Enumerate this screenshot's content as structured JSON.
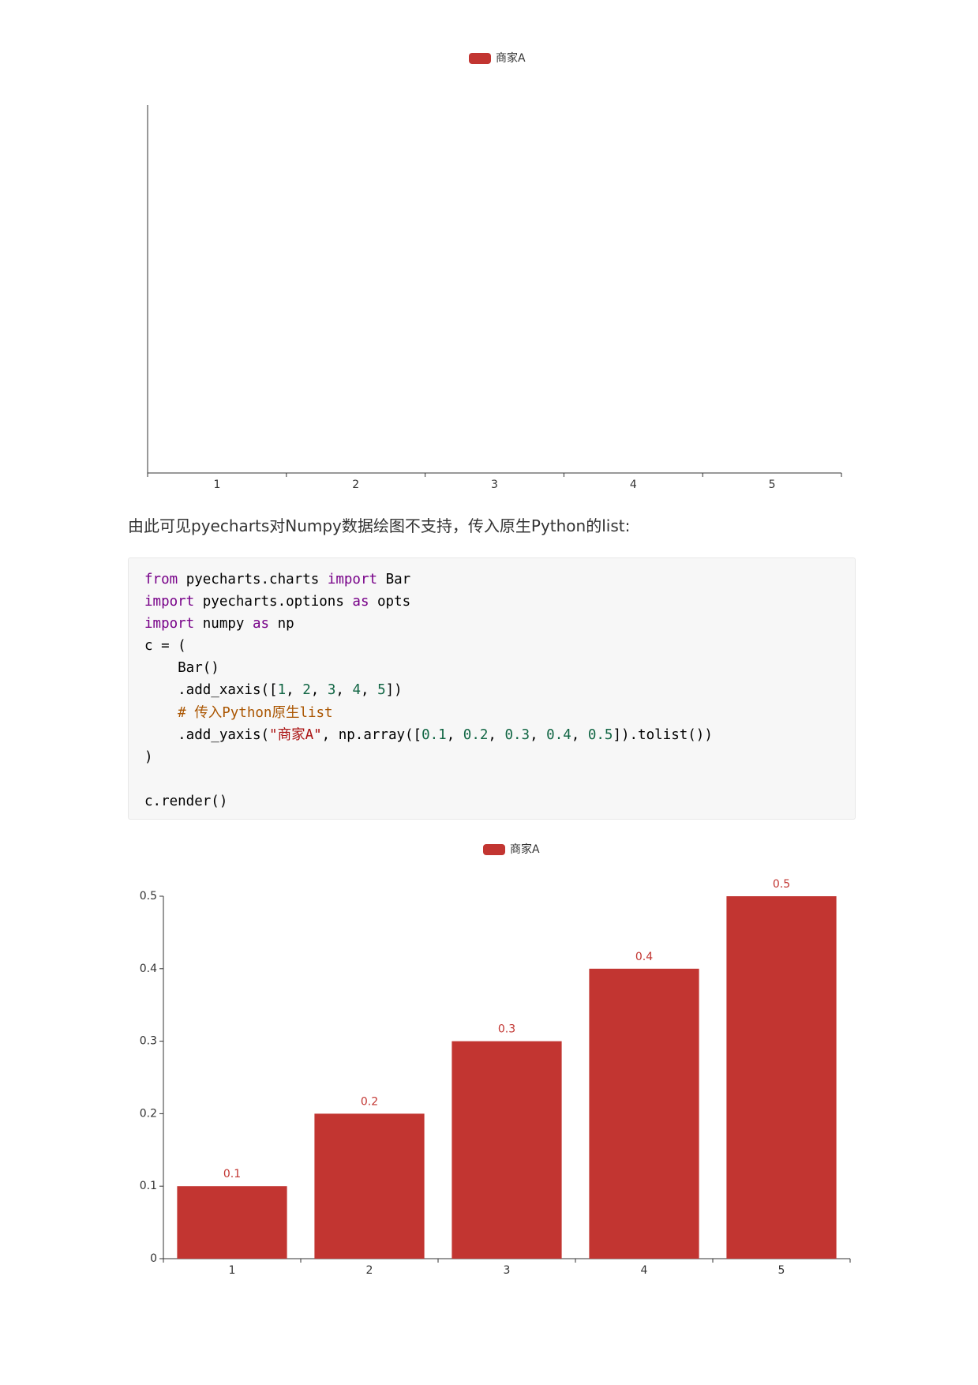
{
  "chart_data": [
    {
      "type": "bar",
      "legend": "商家A",
      "color": "#c23531",
      "categories": [
        "1",
        "2",
        "3",
        "4",
        "5"
      ]
    },
    {
      "type": "bar",
      "legend": "商家A",
      "color": "#c23531",
      "categories": [
        "1",
        "2",
        "3",
        "4",
        "5"
      ],
      "values": [
        0.1,
        0.2,
        0.3,
        0.4,
        0.5
      ],
      "ylim": [
        0,
        0.5
      ],
      "yticks": [
        0,
        0.1,
        0.2,
        0.3,
        0.4,
        0.5
      ],
      "grid": false
    }
  ],
  "paragraph": "由此可见pyecharts对Numpy数据绘图不支持，传入原生Python的list:",
  "code": {
    "lines": [
      [
        {
          "text": "from",
          "color": "#770088"
        },
        {
          "text": " pyecharts.charts "
        },
        {
          "text": "import",
          "color": "#770088"
        },
        {
          "text": " Bar"
        }
      ],
      [
        {
          "text": "import",
          "color": "#770088"
        },
        {
          "text": " pyecharts.options "
        },
        {
          "text": "as",
          "color": "#770088"
        },
        {
          "text": " opts"
        }
      ],
      [
        {
          "text": "import",
          "color": "#770088"
        },
        {
          "text": " numpy "
        },
        {
          "text": "as",
          "color": "#770088"
        },
        {
          "text": " np"
        }
      ],
      [
        {
          "text": "c = ("
        }
      ],
      [
        {
          "text": "    Bar()"
        }
      ],
      [
        {
          "text": "    .add_xaxis(["
        },
        {
          "text": "1",
          "color": "#116644"
        },
        {
          "text": ", "
        },
        {
          "text": "2",
          "color": "#116644"
        },
        {
          "text": ", "
        },
        {
          "text": "3",
          "color": "#116644"
        },
        {
          "text": ", "
        },
        {
          "text": "4",
          "color": "#116644"
        },
        {
          "text": ", "
        },
        {
          "text": "5",
          "color": "#116644"
        },
        {
          "text": "])"
        }
      ],
      [
        {
          "text": "    "
        },
        {
          "text": "# 传入Python原生list",
          "color": "#aa5500"
        }
      ],
      [
        {
          "text": "    .add_yaxis("
        },
        {
          "text": "\"商家A\"",
          "color": "#aa1111"
        },
        {
          "text": ", np.array(["
        },
        {
          "text": "0.1",
          "color": "#116644"
        },
        {
          "text": ", "
        },
        {
          "text": "0.2",
          "color": "#116644"
        },
        {
          "text": ", "
        },
        {
          "text": "0.3",
          "color": "#116644"
        },
        {
          "text": ", "
        },
        {
          "text": "0.4",
          "color": "#116644"
        },
        {
          "text": ", "
        },
        {
          "text": "0.5",
          "color": "#116644"
        },
        {
          "text": "]).tolist())"
        }
      ],
      [
        {
          "text": ")"
        }
      ],
      [],
      [
        {
          "text": "c.render()"
        }
      ]
    ]
  }
}
